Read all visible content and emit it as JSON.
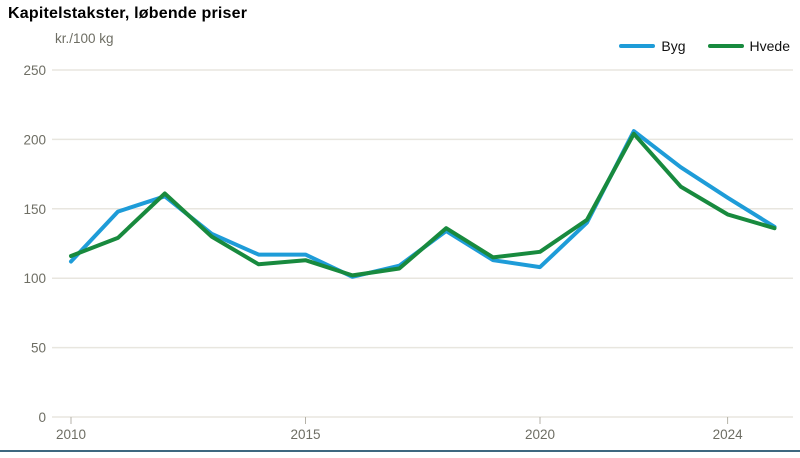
{
  "title": "Kapitelstakster, løbende priser",
  "chart_data": {
    "type": "line",
    "title": "Kapitelstakster, løbende priser",
    "ylabel": "kr./100 kg",
    "xlabel": "",
    "x": [
      2010,
      2011,
      2012,
      2013,
      2014,
      2015,
      2016,
      2017,
      2018,
      2019,
      2020,
      2021,
      2022,
      2023,
      2024,
      2025
    ],
    "series": [
      {
        "name": "Byg",
        "color": "#1e9cd8",
        "values": [
          112,
          148,
          159,
          132,
          117,
          117,
          101,
          109,
          134,
          113,
          108,
          140,
          206,
          180,
          158,
          137
        ]
      },
      {
        "name": "Hvede",
        "color": "#188a3e",
        "values": [
          116,
          129,
          161,
          130,
          110,
          113,
          102,
          107,
          136,
          115,
          119,
          142,
          204,
          166,
          146,
          136
        ]
      }
    ],
    "xlim": [
      2010,
      2025
    ],
    "ylim": [
      0,
      250
    ],
    "yticks": [
      0,
      50,
      100,
      150,
      200,
      250
    ],
    "xticks": [
      2010,
      2015,
      2020,
      2024
    ],
    "grid": "horizontal",
    "legend_position": "top-right"
  },
  "colors": {
    "grid": "#e8e6df",
    "axis_text": "#6e6e64",
    "baseline": "#3d6880",
    "tick": "#b5b2a8",
    "background": "#ffffff"
  }
}
